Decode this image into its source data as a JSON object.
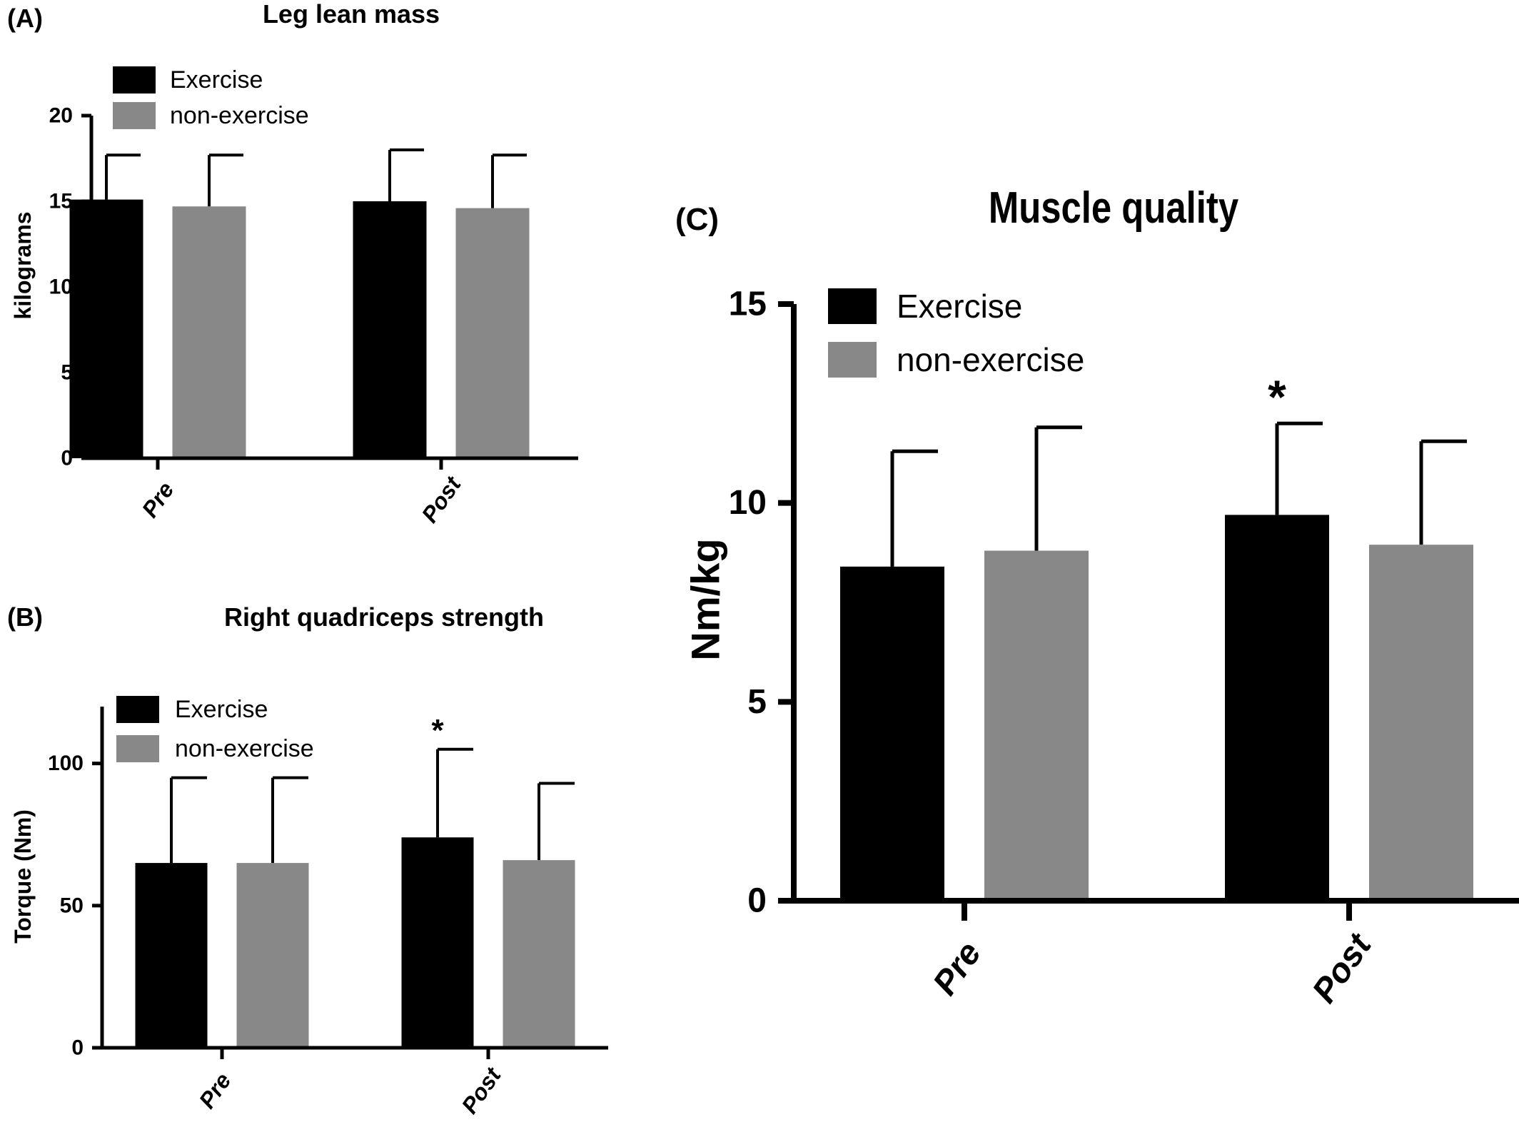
{
  "chart_data": [
    {
      "panel": "(A)",
      "type": "bar",
      "title": "Leg lean mass",
      "xlabel": "",
      "ylabel": "kilograms",
      "ylim": [
        0,
        20
      ],
      "yticks": [
        "0",
        "5",
        "10",
        "15",
        "20"
      ],
      "categories": [
        "Pre",
        "Post"
      ],
      "legend": {
        "position": "top-left"
      },
      "series": [
        {
          "name": "Exercise",
          "color": "#000000",
          "values": [
            15.1,
            15.0
          ],
          "error": [
            2.6,
            3.0
          ]
        },
        {
          "name": "non-exercise",
          "color": "#888888",
          "values": [
            14.7,
            14.6
          ],
          "error": [
            3.0,
            3.1
          ]
        }
      ],
      "annotations": []
    },
    {
      "panel": "(B)",
      "type": "bar",
      "title": "Right quadriceps strength",
      "xlabel": "",
      "ylabel": "Torque (Nm)",
      "ylim": [
        0,
        120
      ],
      "yticks": [
        "0",
        "50",
        "100"
      ],
      "categories": [
        "Pre",
        "Post"
      ],
      "legend": {
        "position": "top-left"
      },
      "series": [
        {
          "name": "Exercise",
          "color": "#000000",
          "values": [
            65,
            74
          ],
          "error": [
            30,
            31
          ]
        },
        {
          "name": "non-exercise",
          "color": "#888888",
          "values": [
            65,
            66
          ],
          "error": [
            30,
            27
          ]
        }
      ],
      "annotations": [
        {
          "text": "*",
          "category": "Post",
          "series": "Exercise"
        }
      ]
    },
    {
      "panel": "(C)",
      "type": "bar",
      "title": "Muscle quality",
      "xlabel": "",
      "ylabel": "Nm/kg",
      "ylim": [
        0,
        15
      ],
      "yticks": [
        "0",
        "5",
        "10",
        "15"
      ],
      "categories": [
        "Pre",
        "Post"
      ],
      "legend": {
        "position": "top-left"
      },
      "series": [
        {
          "name": "Exercise",
          "color": "#000000",
          "values": [
            8.4,
            9.7
          ],
          "error": [
            2.9,
            2.3
          ]
        },
        {
          "name": "non-exercise",
          "color": "#888888",
          "values": [
            8.8,
            8.95
          ],
          "error": [
            3.1,
            2.6
          ]
        }
      ],
      "annotations": [
        {
          "text": "*",
          "category": "Post",
          "series": "Exercise"
        }
      ]
    }
  ]
}
